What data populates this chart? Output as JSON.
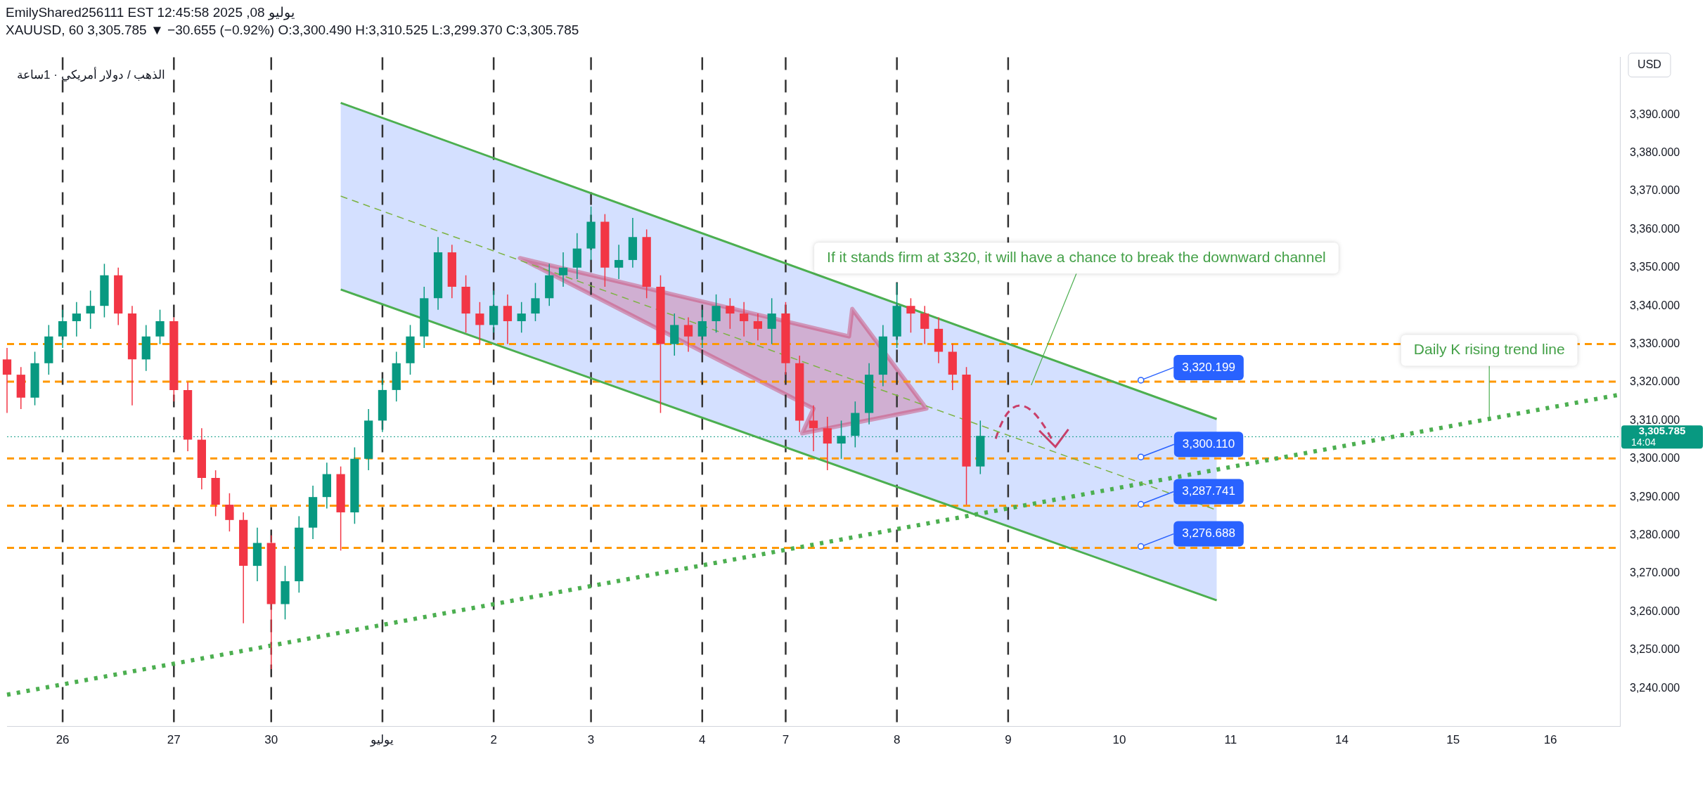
{
  "chart_data": {
    "type": "candlestick",
    "title": "XAUUSD, 60  3,305.785 ▼ −30.655 (−0.92%)  O:3,300.490  H:3,310.525  L:3,299.370  C:3,305.785",
    "subtitle": "EmilyShared256111 EST 12:45:58 2025 ,08 يوليو",
    "ylabel": "USD",
    "categories": [
      null,
      null,
      null,
      null,
      "26",
      null,
      null,
      null,
      null,
      null,
      null,
      null,
      "27",
      null,
      null,
      null,
      null,
      null,
      null,
      "30",
      null,
      null,
      null,
      null,
      null,
      null,
      null,
      "يوليو",
      null,
      null,
      null,
      null,
      null,
      null,
      null,
      "2",
      null,
      null,
      null,
      null,
      null,
      null,
      "3",
      null,
      null,
      null,
      null,
      null,
      null,
      null,
      "4",
      null,
      null,
      null,
      null,
      null,
      "7",
      null,
      null,
      null,
      null,
      null,
      null,
      null,
      "8",
      null,
      null,
      null,
      null,
      null,
      null,
      null,
      "9",
      null,
      null,
      null,
      null,
      null,
      null,
      null,
      "10",
      null,
      null,
      null,
      null,
      null,
      null,
      null,
      "11",
      null,
      null,
      null,
      null,
      null,
      null,
      null,
      "14",
      null,
      null,
      null,
      null,
      null,
      null,
      null,
      "15",
      null,
      null,
      null,
      null,
      null,
      null,
      "16",
      null,
      null,
      null,
      null,
      null
    ],
    "ohlc": [
      [
        3326,
        3329,
        3312,
        3322
      ],
      [
        3322,
        3324,
        3313,
        3316
      ],
      [
        3316,
        3328,
        3314,
        3325
      ],
      [
        3325,
        3335,
        3322,
        3332
      ],
      [
        3332,
        3339,
        3329,
        3336
      ],
      [
        3336,
        3341,
        3332,
        3338
      ],
      [
        3338,
        3344,
        3334,
        3340
      ],
      [
        3340,
        3351,
        3337,
        3348
      ],
      [
        3348,
        3350,
        3335,
        3338
      ],
      [
        3338,
        3340,
        3314,
        3326
      ],
      [
        3326,
        3335,
        3323,
        3332
      ],
      [
        3332,
        3339,
        3330,
        3336
      ],
      [
        3336,
        3337,
        3315,
        3318
      ],
      [
        3318,
        3320,
        3302,
        3305
      ],
      [
        3305,
        3308,
        3292,
        3295
      ],
      [
        3295,
        3297,
        3285,
        3288
      ],
      [
        3288,
        3291,
        3281,
        3284
      ],
      [
        3284,
        3286,
        3257,
        3272
      ],
      [
        3272,
        3282,
        3268,
        3278
      ],
      [
        3278,
        3280,
        3245,
        3262
      ],
      [
        3262,
        3272,
        3258,
        3268
      ],
      [
        3268,
        3285,
        3265,
        3282
      ],
      [
        3282,
        3293,
        3279,
        3290
      ],
      [
        3290,
        3299,
        3287,
        3296
      ],
      [
        3296,
        3298,
        3276,
        3286
      ],
      [
        3286,
        3303,
        3283,
        3300
      ],
      [
        3300,
        3313,
        3297,
        3310
      ],
      [
        3310,
        3321,
        3307,
        3318
      ],
      [
        3318,
        3328,
        3315,
        3325
      ],
      [
        3325,
        3335,
        3322,
        3332
      ],
      [
        3332,
        3345,
        3329,
        3342
      ],
      [
        3342,
        3358,
        3339,
        3354
      ],
      [
        3354,
        3356,
        3342,
        3345
      ],
      [
        3345,
        3348,
        3333,
        3338
      ],
      [
        3338,
        3341,
        3330,
        3335
      ],
      [
        3335,
        3344,
        3333,
        3340
      ],
      [
        3340,
        3343,
        3330,
        3336
      ],
      [
        3336,
        3341,
        3333,
        3338
      ],
      [
        3338,
        3346,
        3336,
        3342
      ],
      [
        3342,
        3351,
        3340,
        3348
      ],
      [
        3348,
        3354,
        3345,
        3350
      ],
      [
        3350,
        3359,
        3347,
        3355
      ],
      [
        3355,
        3366,
        3352,
        3362
      ],
      [
        3362,
        3364,
        3345,
        3350
      ],
      [
        3350,
        3356,
        3347,
        3352
      ],
      [
        3352,
        3363,
        3350,
        3358
      ],
      [
        3358,
        3360,
        3342,
        3345
      ],
      [
        3345,
        3348,
        3312,
        3330
      ],
      [
        3330,
        3338,
        3327,
        3335
      ],
      [
        3335,
        3337,
        3328,
        3332
      ],
      [
        3332,
        3339,
        3329,
        3336
      ],
      [
        3336,
        3343,
        3333,
        3340
      ],
      [
        3340,
        3342,
        3334,
        3338
      ],
      [
        3338,
        3341,
        3332,
        3336
      ],
      [
        3336,
        3338,
        3331,
        3334
      ],
      [
        3334,
        3342,
        3330,
        3338
      ],
      [
        3338,
        3341,
        3322,
        3325
      ],
      [
        3325,
        3327,
        3307,
        3310
      ],
      [
        3310,
        3314,
        3302,
        3308
      ],
      [
        3308,
        3311,
        3297,
        3304
      ],
      [
        3304,
        3310,
        3300,
        3306
      ],
      [
        3306,
        3315,
        3303,
        3312
      ],
      [
        3312,
        3325,
        3309,
        3322
      ],
      [
        3322,
        3335,
        3319,
        3332
      ],
      [
        3332,
        3346,
        3329,
        3340
      ],
      [
        3340,
        3342,
        3333,
        3338
      ],
      [
        3338,
        3340,
        3330,
        3334
      ],
      [
        3334,
        3337,
        3325,
        3328
      ],
      [
        3328,
        3330,
        3318,
        3322
      ],
      [
        3322,
        3324,
        3288,
        3298
      ],
      [
        3298,
        3310,
        3296,
        3306
      ],
      null,
      null,
      null,
      null,
      null,
      null,
      null,
      null,
      null,
      null,
      null,
      null,
      null,
      null,
      null,
      null,
      null,
      null,
      null,
      null,
      null,
      null,
      null,
      null,
      null,
      null,
      null,
      null,
      null,
      null,
      null,
      null,
      null,
      null,
      null,
      null,
      null,
      null,
      null,
      null,
      null,
      null,
      null,
      null,
      null,
      null
    ],
    "colors": [
      "#f23645",
      "#f23645",
      "#089981",
      "#089981",
      "#089981",
      "#089981",
      "#089981",
      "#089981",
      "#f23645",
      "#f23645",
      "#089981",
      "#089981",
      "#f23645",
      "#f23645",
      "#f23645",
      "#f23645",
      "#f23645",
      "#f23645",
      "#089981",
      "#f23645",
      "#089981",
      "#089981",
      "#089981",
      "#089981",
      "#f23645",
      "#089981",
      "#089981",
      "#089981",
      "#089981",
      "#089981",
      "#089981",
      "#089981",
      "#f23645",
      "#f23645",
      "#f23645",
      "#089981",
      "#f23645",
      "#089981",
      "#089981",
      "#089981",
      "#089981",
      "#089981",
      "#089981",
      "#f23645",
      "#089981",
      "#089981",
      "#f23645",
      "#f23645",
      "#089981",
      "#f23645",
      "#089981",
      "#089981",
      "#f23645",
      "#f23645",
      "#f23645",
      "#089981",
      "#f23645",
      "#f23645",
      "#f23645",
      "#f23645",
      "#089981",
      "#089981",
      "#089981",
      "#089981",
      "#089981",
      "#f23645",
      "#f23645",
      "#f23645",
      "#f23645",
      "#f23645",
      "#089981",
      null,
      null,
      null,
      null,
      null,
      null,
      null,
      null,
      null,
      null,
      null,
      null,
      null,
      null,
      null,
      null,
      null,
      null,
      null,
      null,
      null,
      null,
      null,
      null,
      null,
      null,
      null,
      null,
      null,
      null,
      null,
      null,
      null,
      null,
      null,
      null,
      null,
      null,
      null,
      null,
      null,
      null,
      null,
      null,
      null,
      null
    ],
    "series": [
      {
        "type": "line",
        "color": "#7cb342",
        "line_style": "dashed",
        "values": [
          null,
          null,
          null,
          null,
          null,
          null,
          null,
          null,
          null,
          null,
          null,
          null,
          null,
          null,
          null,
          null,
          null,
          null,
          null,
          null,
          null,
          null,
          null,
          null,
          3368.7,
          null,
          null,
          null,
          null,
          null,
          null,
          null,
          null,
          null,
          null,
          null,
          null,
          null,
          null,
          null,
          null,
          null,
          null,
          null,
          null,
          null,
          null,
          null,
          null,
          null,
          null,
          null,
          null,
          null,
          null,
          null,
          null,
          null,
          null,
          null,
          null,
          null,
          null,
          null,
          null,
          null,
          null,
          null,
          null,
          null,
          null,
          null,
          null,
          null,
          null,
          null,
          null,
          null,
          null,
          null,
          null,
          null,
          null,
          null,
          null,
          null,
          null,
          3286.6,
          null,
          null,
          null,
          null,
          null,
          null,
          null,
          null,
          null,
          null,
          null,
          null,
          null,
          null,
          null,
          null,
          null,
          null,
          null,
          null,
          null,
          null,
          null,
          null,
          null,
          null,
          null,
          null,
          null
        ],
        "lower": [
          null,
          null,
          null,
          null,
          null,
          null,
          null,
          null,
          null,
          null,
          null,
          null,
          null,
          null,
          null,
          null,
          null,
          null,
          null,
          null,
          null,
          null,
          null,
          null,
          3344.3,
          null,
          null,
          null,
          null,
          null,
          null,
          null,
          null,
          null,
          null,
          null,
          null,
          null,
          null,
          null,
          null,
          null,
          null,
          null,
          null,
          null,
          null,
          null,
          null,
          null,
          null,
          null,
          null,
          null,
          null,
          null,
          null,
          null,
          null,
          null,
          null,
          null,
          null,
          null,
          null,
          null,
          null,
          null,
          null,
          null,
          null,
          null,
          null,
          null,
          null,
          null,
          null,
          null,
          null,
          null,
          null,
          null,
          null,
          null,
          null,
          null,
          null,
          3263.0,
          null,
          null,
          null,
          null,
          null,
          null,
          null,
          null,
          null,
          null,
          null,
          null,
          null,
          null,
          null,
          null,
          null,
          null,
          null,
          null,
          null,
          null,
          null,
          null,
          null,
          null,
          null,
          null,
          null
        ],
        "upper": [
          null,
          null,
          null,
          null,
          null,
          null,
          null,
          null,
          null,
          null,
          null,
          null,
          null,
          null,
          null,
          null,
          null,
          null,
          null,
          null,
          null,
          null,
          null,
          null,
          3393.1,
          null,
          null,
          null,
          null,
          null,
          null,
          null,
          null,
          null,
          null,
          null,
          null,
          null,
          null,
          null,
          null,
          null,
          null,
          null,
          null,
          null,
          null,
          null,
          null,
          null,
          null,
          null,
          null,
          null,
          null,
          null,
          null,
          null,
          null,
          null,
          null,
          null,
          null,
          null,
          null,
          null,
          null,
          null,
          null,
          null,
          null,
          null,
          null,
          null,
          null,
          null,
          null,
          null,
          null,
          null,
          null,
          null,
          null,
          null,
          null,
          null,
          null,
          3310.4,
          null,
          null,
          null,
          null,
          null,
          null,
          null,
          null,
          null,
          null,
          null,
          null,
          null,
          null,
          null,
          null,
          null,
          null,
          null,
          null,
          null,
          null,
          null,
          null,
          null,
          null,
          null,
          null,
          null
        ]
      },
      {
        "type": "line",
        "color": "#4caf50",
        "values": [
          null,
          null,
          null,
          null,
          null,
          null,
          null,
          null,
          null,
          null,
          null,
          null,
          null,
          null,
          null,
          null,
          null,
          null,
          null,
          null,
          null,
          null,
          null,
          null,
          3393.1,
          null,
          null,
          null,
          null,
          null,
          null,
          null,
          null,
          null,
          null,
          null,
          null,
          null,
          null,
          null,
          null,
          null,
          null,
          null,
          null,
          null,
          null,
          null,
          null,
          null,
          null,
          null,
          null,
          null,
          null,
          null,
          null,
          null,
          null,
          null,
          null,
          null,
          null,
          null,
          null,
          null,
          null,
          null,
          null,
          null,
          null,
          null,
          null,
          null,
          null,
          null,
          null,
          null,
          null,
          null,
          null,
          null,
          null,
          null,
          null,
          null,
          null,
          3310.4,
          null,
          null,
          null,
          null,
          null,
          null,
          null,
          null,
          null,
          null,
          null,
          null,
          null,
          null,
          null,
          null,
          null,
          null,
          null,
          null,
          null,
          null,
          null,
          null,
          null,
          null,
          null,
          null,
          null
        ]
      },
      {
        "type": "line",
        "color": "#4caf50",
        "values": [
          null,
          null,
          null,
          null,
          null,
          null,
          null,
          null,
          null,
          null,
          null,
          null,
          null,
          null,
          null,
          null,
          null,
          null,
          null,
          null,
          null,
          null,
          null,
          null,
          3344.3,
          null,
          null,
          null,
          null,
          null,
          null,
          null,
          null,
          null,
          null,
          null,
          null,
          null,
          null,
          null,
          null,
          null,
          null,
          null,
          null,
          null,
          null,
          null,
          null,
          null,
          null,
          null,
          null,
          null,
          null,
          null,
          null,
          null,
          null,
          null,
          null,
          null,
          null,
          null,
          null,
          null,
          null,
          null,
          null,
          null,
          null,
          null,
          null,
          null,
          null,
          null,
          null,
          null,
          null,
          null,
          null,
          null,
          null,
          null,
          null,
          null,
          null,
          3263.0,
          null,
          null,
          null,
          null,
          null,
          null,
          null,
          null,
          null,
          null,
          null,
          null,
          null,
          null,
          null,
          null,
          null,
          null,
          null,
          null,
          null,
          null,
          null,
          null,
          null,
          null,
          null,
          null,
          null
        ]
      },
      {
        "type": "line",
        "color": "#4caf50",
        "line_style": "dotted",
        "values": [
          3238.3,
          null,
          null,
          null,
          null,
          null,
          null,
          null,
          null,
          null,
          null,
          null,
          null,
          null,
          null,
          null,
          null,
          null,
          null,
          null,
          null,
          null,
          null,
          null,
          null,
          null,
          null,
          null,
          null,
          null,
          null,
          null,
          null,
          null,
          null,
          null,
          null,
          null,
          null,
          null,
          null,
          null,
          null,
          null,
          null,
          null,
          null,
          null,
          null,
          null,
          null,
          null,
          null,
          null,
          null,
          null,
          null,
          null,
          null,
          null,
          null,
          null,
          null,
          null,
          null,
          null,
          null,
          null,
          null,
          null,
          null,
          null,
          null,
          null,
          null,
          null,
          null,
          null,
          null,
          null,
          null,
          null,
          null,
          null,
          null,
          null,
          null,
          null,
          null,
          null,
          null,
          null,
          null,
          null,
          null,
          null,
          null,
          null,
          null,
          null,
          null,
          null,
          null,
          null,
          null,
          null,
          null,
          null,
          null,
          null,
          null,
          null,
          null,
          null,
          null,
          null,
          3316.8
        ]
      }
    ],
    "ylim": [
      3230,
      3405
    ],
    "yticks": [
      {
        "value": 3240,
        "label": "3,240.000"
      },
      {
        "value": 3250,
        "label": "3,250.000"
      },
      {
        "value": 3260,
        "label": "3,260.000"
      },
      {
        "value": 3270,
        "label": "3,270.000"
      },
      {
        "value": 3280,
        "label": "3,280.000"
      },
      {
        "value": 3290,
        "label": "3,290.000"
      },
      {
        "value": 3300,
        "label": "3,300.000"
      },
      {
        "value": 3310,
        "label": "3,310.000"
      },
      {
        "value": 3320,
        "label": "3,320.000"
      },
      {
        "value": 3330,
        "label": "3,330.000"
      },
      {
        "value": 3340,
        "label": "3,340.000"
      },
      {
        "value": 3350,
        "label": "3,350.000"
      },
      {
        "value": 3360,
        "label": "3,360.000"
      },
      {
        "value": 3370,
        "label": "3,370.000"
      },
      {
        "value": 3380,
        "label": "3,380.000"
      },
      {
        "value": 3390,
        "label": "3,390.000"
      }
    ],
    "grid": false,
    "ref_lines": [
      {
        "axis": "y",
        "value": 3330,
        "color": "#ff9800",
        "line_style": "dashed"
      },
      {
        "axis": "y",
        "value": 3320.199,
        "label": "3,320.199",
        "color": "#ff9800",
        "line_style": "dashed"
      },
      {
        "axis": "y",
        "value": 3300.11,
        "label": "3,300.110",
        "color": "#ff9800",
        "line_style": "dashed"
      },
      {
        "axis": "y",
        "value": 3287.741,
        "label": "3,287.741",
        "color": "#ff9800",
        "line_style": "dashed"
      },
      {
        "axis": "y",
        "value": 3276.688,
        "label": "3,276.688",
        "color": "#ff9800",
        "line_style": "dashed"
      },
      {
        "axis": "y",
        "value": 3305.785,
        "label": "3,305.785",
        "color": "#089981",
        "line_style": "dotted"
      },
      {
        "axis": "x",
        "value": "26",
        "color": "#333333",
        "line_style": "dashed"
      },
      {
        "axis": "x",
        "value": "27",
        "color": "#333333",
        "line_style": "dashed"
      },
      {
        "axis": "x",
        "value": "30",
        "color": "#333333",
        "line_style": "dashed"
      },
      {
        "axis": "x",
        "value": "يوليو",
        "color": "#333333",
        "line_style": "dashed"
      },
      {
        "axis": "x",
        "value": "2",
        "color": "#333333",
        "line_style": "dashed"
      },
      {
        "axis": "x",
        "value": "3",
        "color": "#333333",
        "line_style": "dashed"
      },
      {
        "axis": "x",
        "value": "4",
        "color": "#333333",
        "line_style": "dashed"
      },
      {
        "axis": "x",
        "value": "7",
        "color": "#333333",
        "line_style": "dashed"
      },
      {
        "axis": "x",
        "value": "8",
        "color": "#333333",
        "line_style": "dashed"
      },
      {
        "axis": "x",
        "value": "9",
        "color": "#333333",
        "line_style": "dashed"
      }
    ],
    "annotations": [
      "الذهب / دولار أمريكي · 1ساعة",
      "14:04",
      "If it stands firm at 3320, it will have a chance to break the downward channel",
      {
        "text": "Daily K rising trend line",
        "y": 3310
      }
    ]
  }
}
